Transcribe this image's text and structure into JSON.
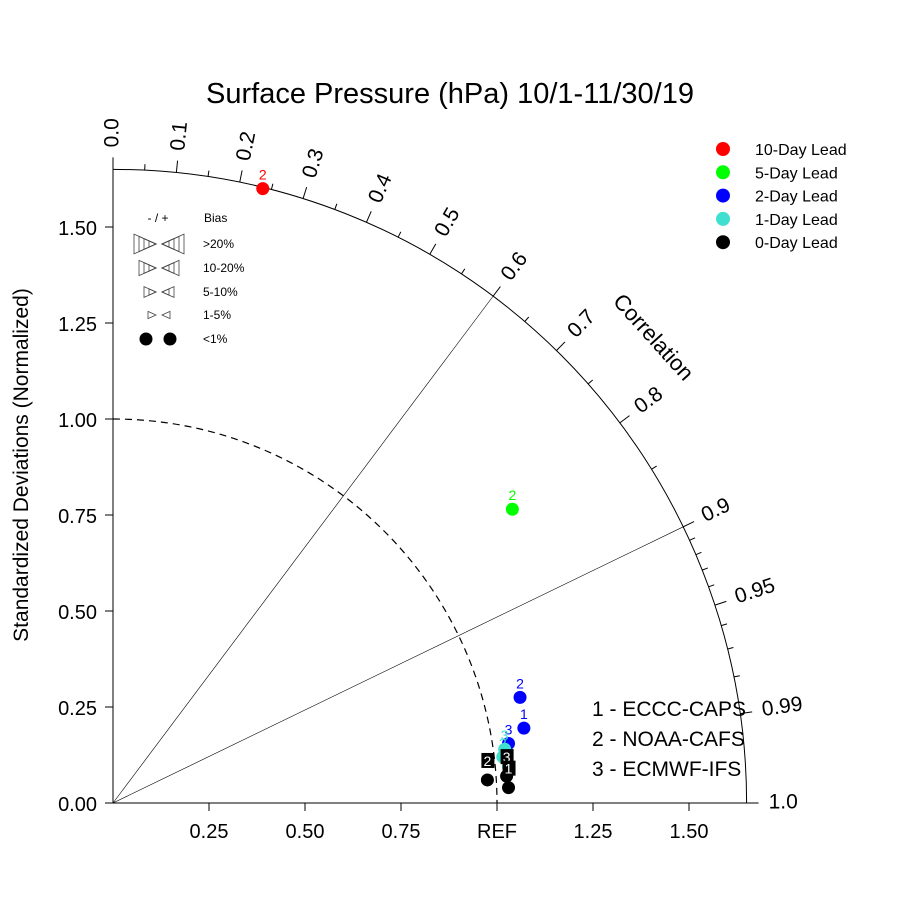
{
  "chart_data": {
    "type": "scatter",
    "title": "Surface Pressure (hPa) 10/1-11/30/19",
    "ylabel": "Standardized Deviations (Normalized)",
    "arc_label": "Correlation",
    "max_std": 1.65,
    "std_ticks": [
      "0.00",
      "0.25",
      "0.50",
      "0.75",
      "1.00",
      "1.25",
      "1.50"
    ],
    "x_ticks": [
      "0.25",
      "0.50",
      "0.75",
      "REF",
      "1.25",
      "1.50"
    ],
    "corr_ticks": [
      "0.0",
      "0.1",
      "0.2",
      "0.3",
      "0.4",
      "0.5",
      "0.6",
      "0.7",
      "0.8",
      "0.9",
      "0.95",
      "0.99",
      "1.0"
    ],
    "corr_lines": [
      0.6,
      0.9
    ],
    "ref_arc_std": 1.0,
    "legend": {
      "series": [
        {
          "name": "10-Day Lead",
          "color": "#ff0000"
        },
        {
          "name": "5-Day Lead",
          "color": "#00ff00"
        },
        {
          "name": "2-Day Lead",
          "color": "#0000ff"
        },
        {
          "name": "1-Day Lead",
          "color": "#40e0d0"
        },
        {
          "name": "0-Day Lead",
          "color": "#000000"
        }
      ]
    },
    "bias_legend": {
      "header_sign": "- / +",
      "header_label": "Bias",
      "rows": [
        ">20%",
        "10-20%",
        "5-10%",
        "1-5%",
        "<1%"
      ]
    },
    "models": [
      "1 - ECCC-CAPS",
      "2 - NOAA-CAFS",
      "3 - ECMWF-IFS"
    ],
    "points": [
      {
        "series": "10-Day Lead",
        "model": "2",
        "x": 0.39,
        "y": 1.6
      },
      {
        "series": "5-Day Lead",
        "model": "2",
        "x": 1.04,
        "y": 0.765
      },
      {
        "series": "2-Day Lead",
        "model": "2",
        "x": 1.06,
        "y": 0.275
      },
      {
        "series": "2-Day Lead",
        "model": "1",
        "x": 1.07,
        "y": 0.195
      },
      {
        "series": "2-Day Lead",
        "model": "3",
        "x": 1.03,
        "y": 0.155
      },
      {
        "series": "1-Day Lead",
        "model": "3",
        "x": 1.02,
        "y": 0.14
      },
      {
        "series": "1-Day Lead",
        "model": "2",
        "x": 1.015,
        "y": 0.12
      },
      {
        "series": "1-Day Lead",
        "model": "1",
        "x": 1.03,
        "y": 0.095
      },
      {
        "series": "0-Day Lead",
        "model": "2",
        "x": 0.975,
        "y": 0.06
      },
      {
        "series": "0-Day Lead",
        "model": "3",
        "x": 1.025,
        "y": 0.07
      },
      {
        "series": "0-Day Lead",
        "model": "1",
        "x": 1.03,
        "y": 0.04
      }
    ]
  }
}
